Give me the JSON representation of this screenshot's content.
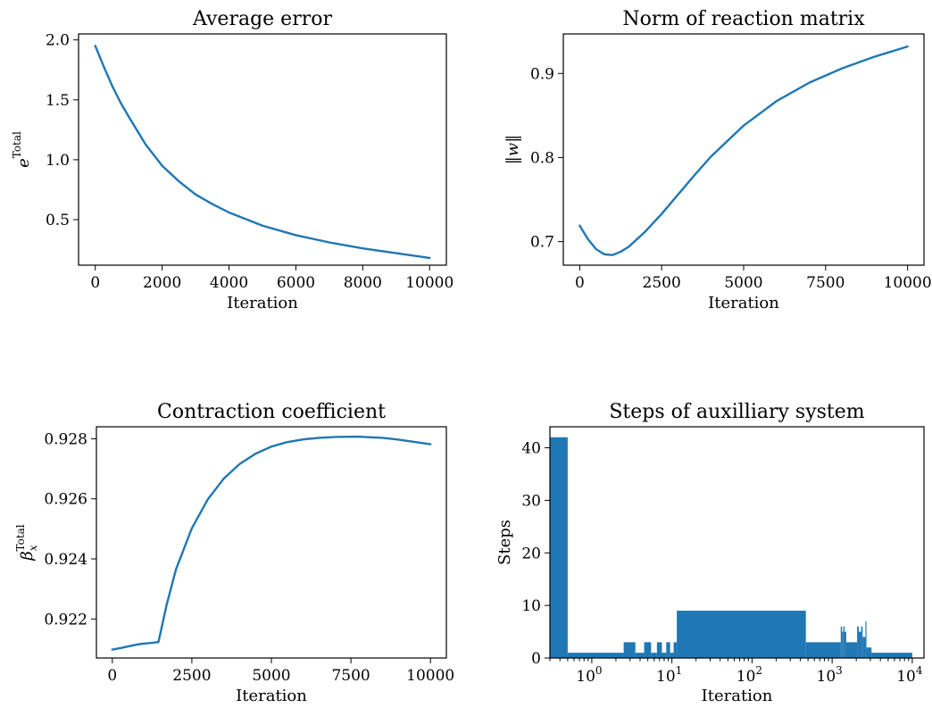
{
  "chart_data": [
    {
      "type": "line",
      "title": "Average error",
      "xlabel": "Iteration",
      "ylabel": "e",
      "ylabel_superscript": "Total",
      "xlim": [
        -500,
        10500
      ],
      "ylim": [
        0.12,
        2.05
      ],
      "xticks": [
        0,
        2000,
        4000,
        6000,
        8000,
        10000
      ],
      "yticks": [
        0.5,
        1.0,
        1.5,
        2.0
      ],
      "ytick_labels": [
        "0.5",
        "1.0",
        "1.5",
        "2.0"
      ],
      "grid": false,
      "series": [
        {
          "x": [
            0,
            250,
            500,
            750,
            1000,
            1500,
            2000,
            2500,
            3000,
            3500,
            4000,
            5000,
            6000,
            7000,
            8000,
            9000,
            10000
          ],
          "y": [
            1.95,
            1.78,
            1.62,
            1.48,
            1.36,
            1.13,
            0.95,
            0.82,
            0.71,
            0.63,
            0.56,
            0.45,
            0.37,
            0.31,
            0.26,
            0.22,
            0.18
          ]
        }
      ]
    },
    {
      "type": "line",
      "title": "Norm of reaction matrix",
      "xlabel": "Iteration",
      "ylabel": "‖w‖",
      "xlim": [
        -500,
        10500
      ],
      "ylim": [
        0.672,
        0.947
      ],
      "xticks": [
        0,
        2500,
        5000,
        7500,
        10000
      ],
      "yticks": [
        0.7,
        0.8,
        0.9
      ],
      "ytick_labels": [
        "0.7",
        "0.8",
        "0.9"
      ],
      "grid": false,
      "series": [
        {
          "x": [
            0,
            250,
            500,
            750,
            1000,
            1250,
            1500,
            2000,
            2500,
            3000,
            3500,
            4000,
            5000,
            6000,
            7000,
            8000,
            9000,
            10000
          ],
          "y": [
            0.719,
            0.703,
            0.691,
            0.685,
            0.684,
            0.688,
            0.694,
            0.712,
            0.733,
            0.756,
            0.779,
            0.801,
            0.838,
            0.867,
            0.889,
            0.906,
            0.92,
            0.932
          ]
        }
      ]
    },
    {
      "type": "line",
      "title": "Contraction coefficient",
      "xlabel": "Iteration",
      "ylabel": "β",
      "ylabel_subscript": "x",
      "ylabel_superscript": "Total",
      "xlim": [
        -500,
        10500
      ],
      "ylim": [
        0.9207,
        0.9284
      ],
      "xticks": [
        0,
        2500,
        5000,
        7500,
        10000
      ],
      "yticks": [
        0.922,
        0.924,
        0.926,
        0.928
      ],
      "ytick_labels": [
        "0.922",
        "0.924",
        "0.926",
        "0.928"
      ],
      "grid": false,
      "series": [
        {
          "x": [
            0,
            300,
            600,
            900,
            1200,
            1450,
            1700,
            2000,
            2500,
            3000,
            3500,
            4000,
            4500,
            5000,
            5500,
            6000,
            6500,
            7000,
            7700,
            8500,
            9000,
            10000
          ],
          "y": [
            0.92098,
            0.92104,
            0.92111,
            0.92117,
            0.9212,
            0.92123,
            0.92244,
            0.92365,
            0.92502,
            0.92598,
            0.92667,
            0.92716,
            0.9275,
            0.92774,
            0.92789,
            0.92798,
            0.92803,
            0.92806,
            0.92807,
            0.92803,
            0.92797,
            0.92782
          ]
        }
      ]
    },
    {
      "type": "bar",
      "title": "Steps of auxilliary system",
      "xlabel": "Iteration",
      "ylabel": "Steps",
      "xscale": "log",
      "xlim": [
        0.3,
        14000
      ],
      "ylim": [
        0,
        44
      ],
      "xticks": [
        1,
        10,
        100,
        1000,
        10000
      ],
      "xtick_labels": [
        "10",
        "10",
        "10",
        "10",
        "10"
      ],
      "xtick_exponents": [
        "0",
        "1",
        "2",
        "3",
        "4"
      ],
      "yticks": [
        0,
        10,
        20,
        30,
        40
      ],
      "ytick_labels": [
        "0",
        "10",
        "20",
        "30",
        "40"
      ],
      "grid": false,
      "bars": [
        {
          "x0": 0.3,
          "x1": 0.5,
          "value": 42
        },
        {
          "x0": 0.5,
          "x1": 2.5,
          "value": 1
        },
        {
          "x0": 2.5,
          "x1": 3.5,
          "value": 3
        },
        {
          "x0": 3.5,
          "x1": 4.5,
          "value": 1
        },
        {
          "x0": 4.5,
          "x1": 5.5,
          "value": 3
        },
        {
          "x0": 5.5,
          "x1": 6.5,
          "value": 1
        },
        {
          "x0": 6.5,
          "x1": 7.5,
          "value": 3
        },
        {
          "x0": 7.5,
          "x1": 8.5,
          "value": 1
        },
        {
          "x0": 8.5,
          "x1": 9.5,
          "value": 3
        },
        {
          "x0": 9.5,
          "x1": 10.5,
          "value": 1
        },
        {
          "x0": 10.5,
          "x1": 11.5,
          "value": 3
        },
        {
          "x0": 11.5,
          "x1": 470,
          "value": 9
        },
        {
          "x0": 470,
          "x1": 1280,
          "value": 3
        },
        {
          "x0": 1280,
          "x1": 1330,
          "value": 6
        },
        {
          "x0": 1330,
          "x1": 1380,
          "value": 5
        },
        {
          "x0": 1380,
          "x1": 1430,
          "value": 6
        },
        {
          "x0": 1430,
          "x1": 1500,
          "value": 5
        },
        {
          "x0": 1500,
          "x1": 2050,
          "value": 3
        },
        {
          "x0": 2050,
          "x1": 2150,
          "value": 6
        },
        {
          "x0": 2150,
          "x1": 2300,
          "value": 5
        },
        {
          "x0": 2300,
          "x1": 2400,
          "value": 6
        },
        {
          "x0": 2400,
          "x1": 2600,
          "value": 4
        },
        {
          "x0": 2600,
          "x1": 2680,
          "value": 7
        },
        {
          "x0": 2680,
          "x1": 3100,
          "value": 2
        },
        {
          "x0": 3100,
          "x1": 10000,
          "value": 1
        }
      ]
    }
  ]
}
